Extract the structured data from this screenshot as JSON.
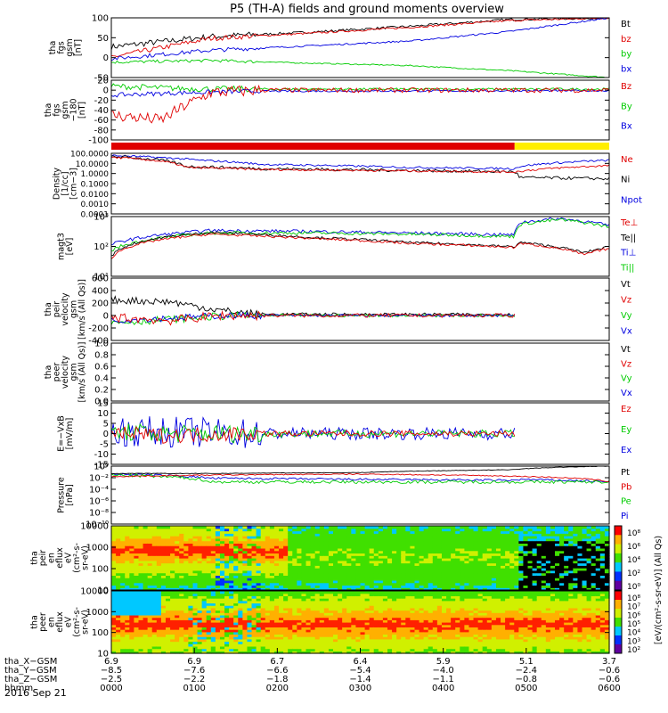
{
  "title": "P5 (TH-A) fields and ground moments overview",
  "date_label": "2016 Sep 21",
  "colors": {
    "red": "#e00000",
    "green": "#00cc00",
    "blue": "#0000e0",
    "black": "#000000",
    "yellow": "#ffee00"
  },
  "chart_data": [
    {
      "type": "line",
      "id": "fgs-gsm",
      "ylabel": [
        "tha",
        "fgs",
        "gsm",
        "[nT]"
      ],
      "ylim": [
        -75,
        100
      ],
      "yticks": [
        100,
        50,
        0,
        -50
      ],
      "legend": [
        {
          "label": "Bt",
          "color": "#000000"
        },
        {
          "label": "bz",
          "color": "#e00000"
        },
        {
          "label": "by",
          "color": "#00cc00"
        },
        {
          "label": "bx",
          "color": "#0000e0"
        }
      ],
      "series": [
        {
          "name": "Bt",
          "color": "#000000",
          "x": [
            0,
            0.2,
            0.4,
            0.6,
            0.8,
            1.0
          ],
          "y": [
            15,
            45,
            58,
            75,
            95,
            100
          ],
          "noise": 6
        },
        {
          "name": "bz",
          "color": "#e00000",
          "x": [
            0,
            0.2,
            0.4,
            0.6,
            0.8,
            1.0
          ],
          "y": [
            -15,
            40,
            55,
            72,
            92,
            100
          ],
          "noise": 5
        },
        {
          "name": "by",
          "color": "#00cc00",
          "x": [
            0,
            0.2,
            0.4,
            0.6,
            0.8,
            1.0
          ],
          "y": [
            -30,
            -25,
            -33,
            -40,
            -55,
            -75
          ],
          "noise": 3
        },
        {
          "name": "bx",
          "color": "#0000e0",
          "x": [
            0,
            0.2,
            0.4,
            0.6,
            0.8,
            1.0
          ],
          "y": [
            -20,
            5,
            18,
            32,
            60,
            100
          ],
          "noise": 4
        }
      ]
    },
    {
      "type": "line",
      "id": "fgs-gsm-180",
      "ylabel": [
        "tha",
        "fgs",
        "gsm",
        "−180",
        "[nT]"
      ],
      "ylim": [
        -100,
        20
      ],
      "yticks": [
        20,
        0,
        -20,
        -40,
        -60,
        -80,
        -100
      ],
      "legend": [
        {
          "label": "Bz",
          "color": "#e00000"
        },
        {
          "label": "By",
          "color": "#00cc00"
        },
        {
          "label": "Bx",
          "color": "#0000e0"
        }
      ],
      "series": [
        {
          "name": "By",
          "color": "#00cc00",
          "x": [
            0,
            0.15,
            0.3,
            1.0
          ],
          "y": [
            8,
            3,
            2,
            2
          ],
          "noise": 4
        },
        {
          "name": "Bx",
          "color": "#0000e0",
          "x": [
            0,
            0.15,
            0.3,
            1.0
          ],
          "y": [
            -10,
            -5,
            -2,
            -1
          ],
          "noise": 3
        },
        {
          "name": "Bz",
          "color": "#e00000",
          "x": [
            0,
            0.1,
            0.15,
            0.2,
            0.3,
            1.0
          ],
          "y": [
            -50,
            -60,
            -30,
            -5,
            0,
            0
          ],
          "noise": 8
        }
      ]
    },
    {
      "type": "flag_bar",
      "id": "mode-bar",
      "segments": [
        {
          "from": 0,
          "to": 0.81,
          "color": "#e00000"
        },
        {
          "from": 0.81,
          "to": 1.0,
          "color": "#ffee00"
        }
      ]
    },
    {
      "type": "line",
      "id": "density",
      "ylabel": [
        "Density",
        "[1/cc]",
        "[cm−3]"
      ],
      "yscale": "log",
      "ylim": [
        0.0001,
        100
      ],
      "yticks": [
        "100.0000",
        "10.0000",
        "1.0000",
        "0.1000",
        "0.0100",
        "0.0010",
        "0.0001"
      ],
      "legend": [
        {
          "label": "Ne",
          "color": "#e00000"
        },
        {
          "label": "Ni",
          "color": "#000000"
        },
        {
          "label": "Npot",
          "color": "#0000e0"
        }
      ],
      "series": [
        {
          "name": "Npot",
          "color": "#0000e0",
          "x": [
            0,
            0.18,
            0.3,
            0.6,
            0.81,
            0.82,
            1.0
          ],
          "y": [
            60,
            20,
            8,
            4,
            3,
            5,
            20
          ],
          "noise": 0.1
        },
        {
          "name": "Ni",
          "color": "#000000",
          "x": [
            0,
            0.15,
            0.3,
            0.6,
            0.81,
            0.82,
            1.0
          ],
          "y": [
            50,
            5,
            3,
            2,
            1.5,
            0.4,
            0.3
          ],
          "noise": 0.15
        },
        {
          "name": "Ne",
          "color": "#e00000",
          "x": [
            0,
            0.15,
            0.3,
            0.6,
            0.81,
            1.0
          ],
          "y": [
            40,
            4,
            2.5,
            1.8,
            1.4,
            6
          ],
          "noise": 0.1
        }
      ]
    },
    {
      "type": "line",
      "id": "temperature",
      "ylabel": [
        "magt3",
        "[eV]"
      ],
      "yscale": "log",
      "ylim": [
        10,
        10000
      ],
      "yticks": [
        "10³",
        "10²",
        "10¹"
      ],
      "legend": [
        {
          "label": "Te⊥",
          "color": "#e00000"
        },
        {
          "label": "Te||",
          "color": "#000000"
        },
        {
          "label": "Ti⊥",
          "color": "#0000e0"
        },
        {
          "label": "Ti||",
          "color": "#00cc00"
        }
      ],
      "series": [
        {
          "name": "Ti⊥",
          "color": "#0000e0",
          "x": [
            0,
            0.2,
            0.4,
            0.6,
            0.81,
            0.82,
            0.9,
            1.0
          ],
          "y": [
            400,
            2000,
            1800,
            1500,
            1200,
            5000,
            8000,
            3500
          ],
          "noise": 0.08
        },
        {
          "name": "Ti||",
          "color": "#00cc00",
          "x": [
            0,
            0.2,
            0.4,
            0.6,
            0.81,
            0.82,
            0.9,
            1.0
          ],
          "y": [
            200,
            1500,
            1500,
            1300,
            1000,
            4000,
            7000,
            3000
          ],
          "noise": 0.08
        },
        {
          "name": "Te||",
          "color": "#000000",
          "x": [
            0,
            0.2,
            0.4,
            0.6,
            0.81,
            0.82,
            0.95,
            1.0
          ],
          "y": [
            100,
            1600,
            900,
            500,
            300,
            500,
            150,
            300
          ],
          "noise": 0.06
        },
        {
          "name": "Te⊥",
          "color": "#e00000",
          "x": [
            0,
            0.2,
            0.4,
            0.6,
            0.81,
            0.82,
            0.95,
            1.0
          ],
          "y": [
            80,
            1300,
            800,
            450,
            280,
            450,
            120,
            250
          ],
          "noise": 0.06
        }
      ]
    },
    {
      "type": "line",
      "id": "peir-velocity",
      "ylabel": [
        "tha",
        "peir",
        "velocity",
        "gsm",
        "[km/s (All Qs)]"
      ],
      "ylim": [
        -400,
        600
      ],
      "yticks": [
        600,
        400,
        200,
        0,
        -200,
        -400
      ],
      "legend": [
        {
          "label": "Vt",
          "color": "#000000"
        },
        {
          "label": "Vz",
          "color": "#e00000"
        },
        {
          "label": "Vy",
          "color": "#00cc00"
        },
        {
          "label": "Vx",
          "color": "#0000e0"
        }
      ],
      "series": [
        {
          "name": "Vt",
          "color": "#000000",
          "x": [
            0,
            0.12,
            0.22,
            0.3,
            0.81
          ],
          "y": [
            250,
            220,
            80,
            20,
            15
          ],
          "noise": 40
        },
        {
          "name": "Vy",
          "color": "#00cc00",
          "x": [
            0,
            0.12,
            0.22,
            0.3,
            0.81
          ],
          "y": [
            -120,
            -60,
            -10,
            0,
            0
          ],
          "noise": 40
        },
        {
          "name": "Vx",
          "color": "#0000e0",
          "x": [
            0,
            0.12,
            0.22,
            0.3,
            0.81
          ],
          "y": [
            -80,
            -40,
            0,
            0,
            0
          ],
          "noise": 35
        },
        {
          "name": "Vz",
          "color": "#e00000",
          "x": [
            0,
            0.12,
            0.22,
            0.3,
            0.81
          ],
          "y": [
            -30,
            -80,
            0,
            0,
            0
          ],
          "noise": 50
        }
      ]
    },
    {
      "type": "line",
      "id": "peer-velocity",
      "ylabel": [
        "tha",
        "peer",
        "velocity",
        "gsm",
        "[km/s (All Qs)]"
      ],
      "ylim": [
        0,
        1
      ],
      "yticks": [
        "1.0",
        "0.8",
        "0.6",
        "0.4",
        "0.2",
        "0.0"
      ],
      "legend": [
        {
          "label": "Vt",
          "color": "#000000"
        },
        {
          "label": "Vz",
          "color": "#e00000"
        },
        {
          "label": "Vy",
          "color": "#00cc00"
        },
        {
          "label": "Vx",
          "color": "#0000e0"
        }
      ],
      "series": []
    },
    {
      "type": "line",
      "id": "efield",
      "ylabel": [
        "E=−VxB",
        "[mV/m]"
      ],
      "ylim": [
        -15,
        15
      ],
      "yticks": [
        15,
        10,
        5,
        0,
        -5,
        -10,
        -15
      ],
      "legend": [
        {
          "label": "Ez",
          "color": "#e00000"
        },
        {
          "label": "Ey",
          "color": "#00cc00"
        },
        {
          "label": "Ex",
          "color": "#0000e0"
        }
      ],
      "series": [
        {
          "name": "Ex",
          "color": "#0000e0",
          "x": [
            0,
            0.1,
            0.25,
            0.3,
            0.81
          ],
          "y": [
            1,
            1,
            0,
            0,
            0
          ],
          "noise": 5
        },
        {
          "name": "Ey",
          "color": "#00cc00",
          "x": [
            0,
            0.1,
            0.25,
            0.3,
            0.81
          ],
          "y": [
            1,
            0,
            0,
            0,
            0
          ],
          "noise": 3
        },
        {
          "name": "Ez",
          "color": "#e00000",
          "x": [
            0,
            0.1,
            0.25,
            0.3,
            0.81
          ],
          "y": [
            0,
            -1,
            0,
            0,
            0
          ],
          "noise": 2.5
        }
      ]
    },
    {
      "type": "line",
      "id": "pressure",
      "ylabel": [
        "Pressure",
        "[nPa]"
      ],
      "yscale": "log",
      "ylim": [
        1e-10,
        10
      ],
      "yticks": [
        "10⁰",
        "10⁻²",
        "10⁻⁴",
        "10⁻⁶",
        "10⁻⁸",
        "10⁻¹⁰"
      ],
      "legend": [
        {
          "label": "Pt",
          "color": "#000000"
        },
        {
          "label": "Pb",
          "color": "#e00000"
        },
        {
          "label": "Pe",
          "color": "#00cc00"
        },
        {
          "label": "Pi",
          "color": "#0000e0"
        }
      ],
      "series": [
        {
          "name": "Pi",
          "color": "#0000e0",
          "x": [
            0,
            0.2,
            0.5,
            0.81,
            0.82,
            1.0
          ],
          "y": [
            0.3,
            0.05,
            0.03,
            0.02,
            0.03,
            0.01
          ],
          "noise": 0.2
        },
        {
          "name": "Pe",
          "color": "#00cc00",
          "x": [
            0,
            0.2,
            0.5,
            0.81,
            1.0
          ],
          "y": [
            0.2,
            0.01,
            0.01,
            0.01,
            0.01
          ],
          "noise": 0.3
        },
        {
          "name": "Pb",
          "color": "#e00000",
          "x": [
            0,
            0.2,
            0.5,
            1.0
          ],
          "y": [
            0.1,
            0.2,
            0.3,
            0.01
          ],
          "noise": 0.1
        },
        {
          "name": "Pt",
          "color": "#000000",
          "x": [
            0,
            0.2,
            0.5,
            0.8,
            1.0
          ],
          "y": [
            0.4,
            0.4,
            0.6,
            2,
            10
          ],
          "noise": 0.05
        }
      ]
    },
    {
      "type": "heatmap",
      "id": "peir-eflux",
      "ylabel": [
        "tha",
        "peir",
        "en",
        "eflux",
        "eV",
        "(cm²-s-",
        "sr-eV)"
      ],
      "yscale": "log",
      "ylim": [
        5,
        20000
      ],
      "yticks": [
        "10000",
        "1000",
        "100",
        "10"
      ],
      "colorbar_ticks": [
        "10⁸",
        "10⁶",
        "10⁴",
        "10²",
        "10⁰"
      ]
    },
    {
      "type": "heatmap",
      "id": "peer-eflux",
      "ylabel": [
        "tha",
        "peer",
        "en",
        "eflux",
        "eV",
        "(cm²-s-",
        "sr-eV)"
      ],
      "yscale": "log",
      "ylim": [
        5,
        20000
      ],
      "yticks": [
        "10000",
        "1000",
        "100",
        "10"
      ],
      "colorbar_ticks": [
        "10⁸",
        "10⁷",
        "10⁶",
        "10⁵",
        "10⁴",
        "10³",
        "10²"
      ]
    }
  ],
  "colorbar_label": "[eV/(cm²-s-sr-eV)] (All Qs)",
  "x_axis": {
    "row_labels": [
      "tha_X−GSM",
      "tha_Y−GSM",
      "tha_Z−GSM",
      "hhmm"
    ],
    "columns": [
      [
        "6.9",
        "−8.5",
        "−2.5",
        "0000"
      ],
      [
        "6.9",
        "−7.6",
        "−2.2",
        "0100"
      ],
      [
        "6.7",
        "−6.6",
        "−1.8",
        "0200"
      ],
      [
        "6.4",
        "−5.4",
        "−1.4",
        "0300"
      ],
      [
        "5.9",
        "−4.0",
        "−1.1",
        "0400"
      ],
      [
        "5.1",
        "−2.4",
        "−0.8",
        "0500"
      ],
      [
        "3.7",
        "−0.6",
        "−0.6",
        "0600"
      ]
    ]
  }
}
